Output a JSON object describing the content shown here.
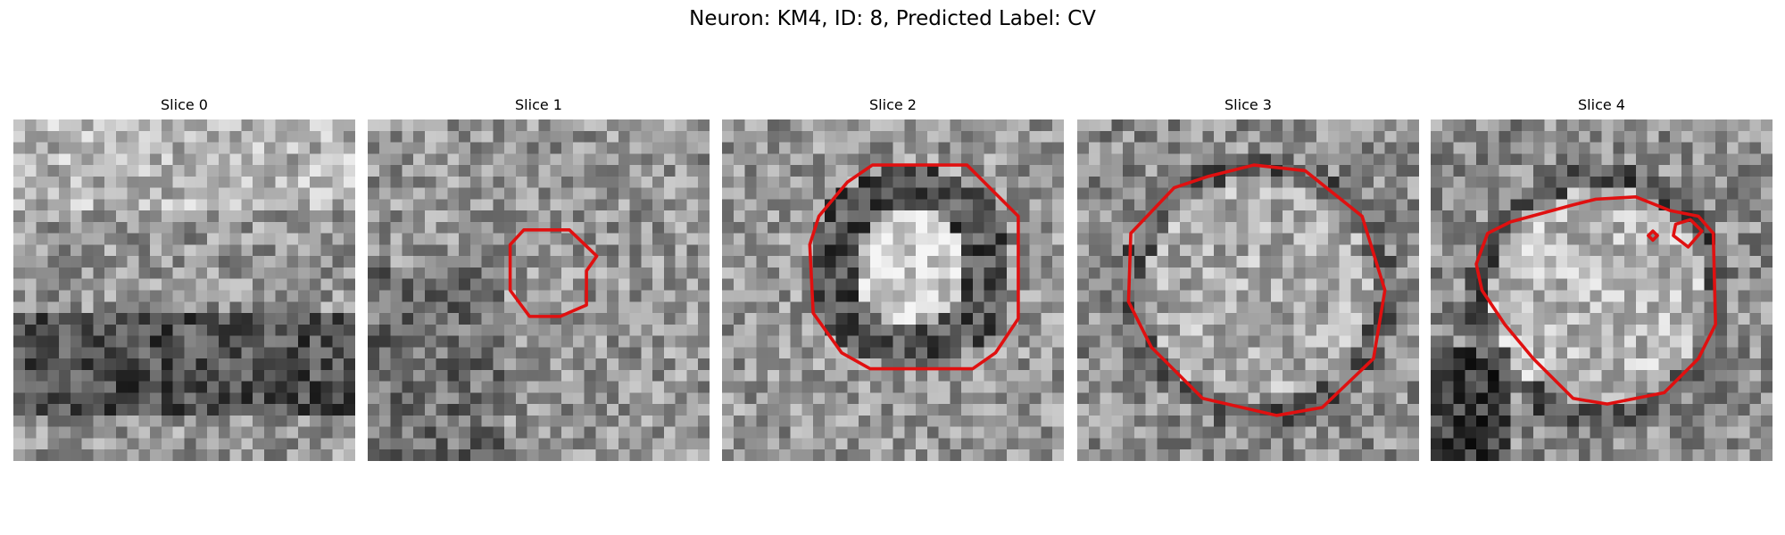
{
  "title": "Neuron: KM4, ID: 8, Predicted Label: CV",
  "panels": [
    {
      "title": "Slice 0"
    },
    {
      "title": "Slice 1"
    },
    {
      "title": "Slice 2"
    },
    {
      "title": "Slice 3"
    },
    {
      "title": "Slice 4"
    }
  ]
}
